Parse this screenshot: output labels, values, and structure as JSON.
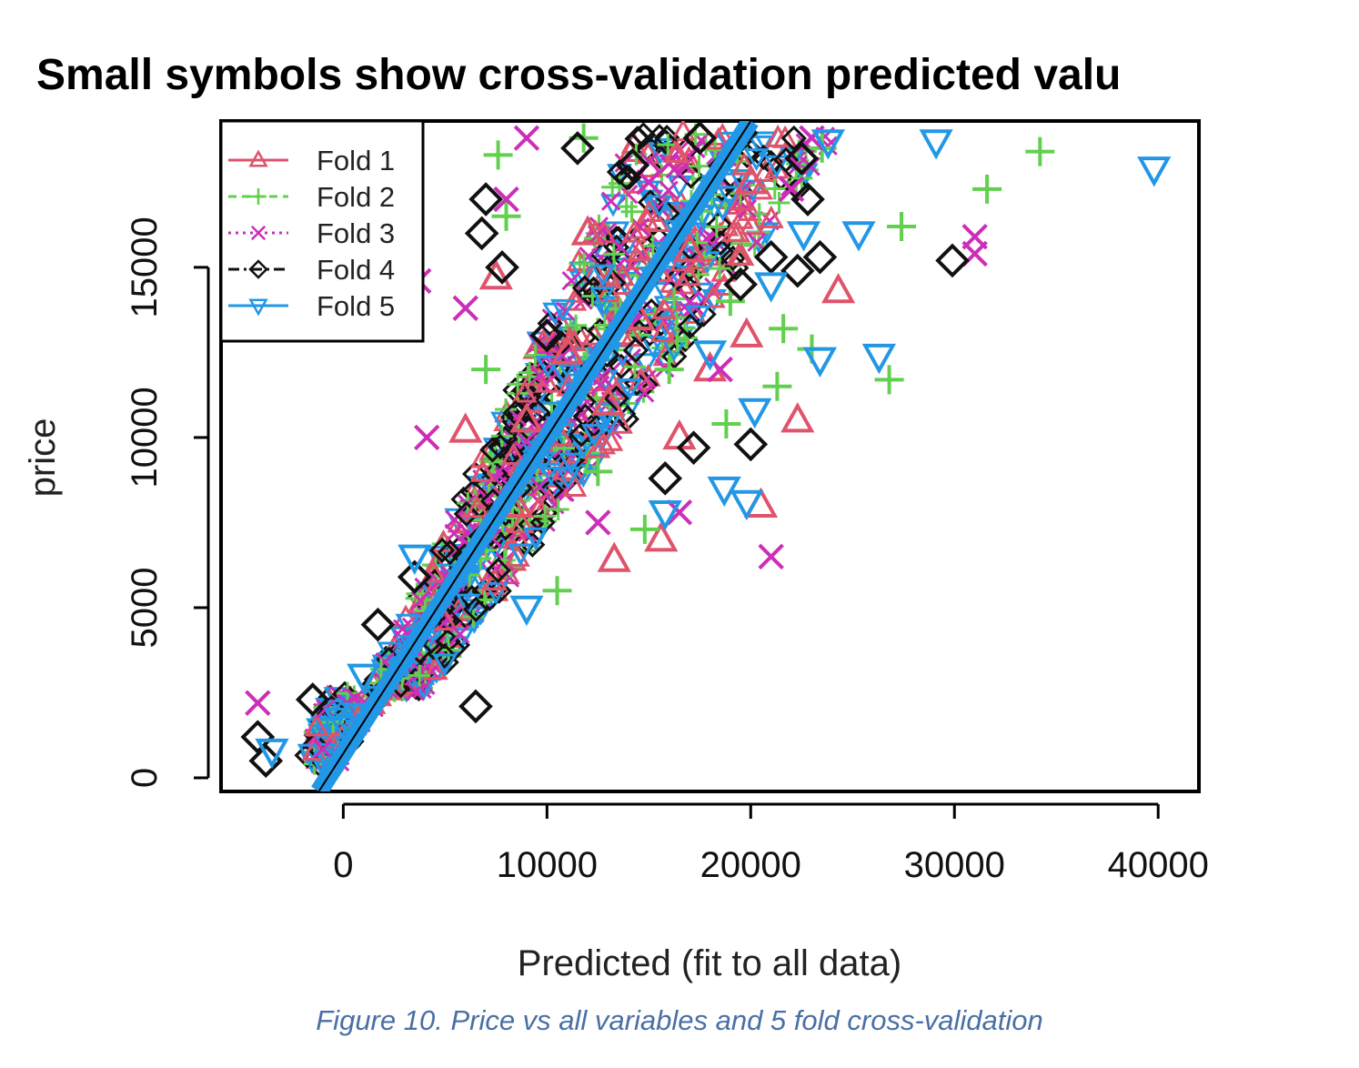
{
  "chart_data": {
    "type": "scatter",
    "title": "Small symbols show cross-validation predicted valu",
    "xlabel": "Predicted (fit to all data)",
    "ylabel": "price",
    "xlim": [
      -6000,
      42000
    ],
    "ylim": [
      -400,
      19300
    ],
    "xticks": [
      0,
      10000,
      20000,
      30000,
      40000
    ],
    "yticks": [
      0,
      5000,
      10000,
      15000
    ],
    "legend": {
      "position": "top-left"
    },
    "series": [
      {
        "name": "Fold 1",
        "color": "#df536b",
        "symbol": "triangle-up",
        "line_style": "solid",
        "points": [
          [
            24300,
            14300
          ],
          [
            22300,
            10500
          ],
          [
            15600,
            7000
          ],
          [
            13300,
            6400
          ],
          [
            20500,
            8000
          ],
          [
            9000,
            10500
          ],
          [
            7500,
            14700
          ],
          [
            14500,
            13500
          ],
          [
            18000,
            12000
          ],
          [
            19800,
            13000
          ],
          [
            12000,
            16000
          ],
          [
            6000,
            10200
          ],
          [
            16500,
            10000
          ],
          [
            11000,
            12500
          ],
          [
            8500,
            8000
          ],
          [
            17000,
            15500
          ],
          [
            20000,
            17500
          ],
          [
            13000,
            11000
          ]
        ]
      },
      {
        "name": "Fold 2",
        "color": "#61d04f",
        "symbol": "plus",
        "line_style": "dashed",
        "points": [
          [
            34200,
            18400
          ],
          [
            31600,
            17300
          ],
          [
            27400,
            16200
          ],
          [
            26800,
            11700
          ],
          [
            23000,
            12600
          ],
          [
            21600,
            13200
          ],
          [
            21300,
            11500
          ],
          [
            18800,
            10400
          ],
          [
            14800,
            7300
          ],
          [
            23500,
            18500
          ],
          [
            11800,
            18800
          ],
          [
            7600,
            18300
          ],
          [
            8000,
            16500
          ],
          [
            19000,
            14000
          ],
          [
            12500,
            9000
          ],
          [
            10500,
            5500
          ],
          [
            16000,
            12000
          ],
          [
            7000,
            12000
          ]
        ]
      },
      {
        "name": "Fold 3",
        "color": "#cd2eb8",
        "symbol": "cross",
        "line_style": "dotted",
        "points": [
          [
            -4200,
            2200
          ],
          [
            4100,
            10000
          ],
          [
            3700,
            14600
          ],
          [
            21000,
            6500
          ],
          [
            31000,
            15400
          ],
          [
            31000,
            15900
          ],
          [
            22000,
            17300
          ],
          [
            23000,
            18800
          ],
          [
            9000,
            18800
          ],
          [
            16500,
            7800
          ],
          [
            18500,
            12000
          ],
          [
            12500,
            7500
          ],
          [
            6000,
            13800
          ],
          [
            8000,
            17000
          ],
          [
            15000,
            17500
          ]
        ]
      },
      {
        "name": "Fold 4",
        "color": "#111111",
        "symbol": "diamond",
        "line_style": "dashdot",
        "points": [
          [
            29900,
            15200
          ],
          [
            23400,
            15300
          ],
          [
            22800,
            17000
          ],
          [
            22300,
            14900
          ],
          [
            21000,
            15300
          ],
          [
            20000,
            9800
          ],
          [
            17200,
            9700
          ],
          [
            15800,
            8800
          ],
          [
            6500,
            2100
          ],
          [
            1700,
            4500
          ],
          [
            3500,
            5900
          ],
          [
            -1500,
            2300
          ],
          [
            -3800,
            500
          ],
          [
            -4200,
            1200
          ],
          [
            7000,
            17000
          ],
          [
            7800,
            15000
          ],
          [
            11500,
            18500
          ],
          [
            14200,
            18000
          ],
          [
            17500,
            18800
          ],
          [
            22500,
            18200
          ],
          [
            6800,
            16000
          ],
          [
            19500,
            14500
          ],
          [
            10000,
            13000
          ]
        ]
      },
      {
        "name": "Fold 5",
        "color": "#2297e6",
        "symbol": "triangle-down",
        "line_style": "solid",
        "points": [
          [
            39800,
            17900
          ],
          [
            29100,
            18700
          ],
          [
            25300,
            16000
          ],
          [
            26300,
            12400
          ],
          [
            23400,
            12300
          ],
          [
            22600,
            16000
          ],
          [
            20200,
            10800
          ],
          [
            19800,
            8100
          ],
          [
            18700,
            8500
          ],
          [
            15800,
            7800
          ],
          [
            23800,
            18700
          ],
          [
            21000,
            14500
          ],
          [
            18000,
            12500
          ],
          [
            3500,
            6500
          ],
          [
            9000,
            5000
          ],
          [
            1000,
            3000
          ],
          [
            -3500,
            800
          ]
        ]
      }
    ],
    "reference_line": {
      "color": "#2297e6",
      "from": [
        -1200,
        -400
      ],
      "to": [
        20000,
        19300
      ]
    }
  },
  "caption": "Figure 10. Price vs all variables and 5 fold cross-validation"
}
